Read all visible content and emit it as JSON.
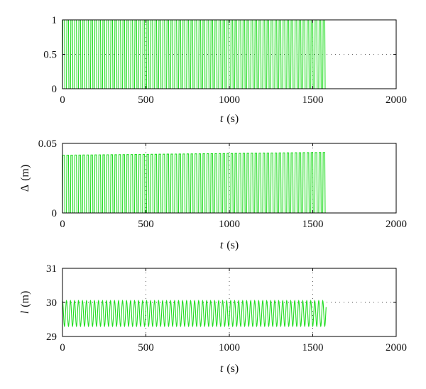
{
  "chart_data": [
    {
      "type": "line",
      "panel": "top",
      "xlabel_var": "t",
      "xlabel_unit": "(s)",
      "ylabel_var": "",
      "ylabel_unit": "",
      "xlim": [
        0,
        2000
      ],
      "ylim": [
        0,
        1
      ],
      "xticks": [
        0,
        500,
        1000,
        1500,
        2000
      ],
      "yticks": [
        0,
        0.5,
        1
      ],
      "xtick_labels": [
        "0",
        "500",
        "1000",
        "1500",
        "2000"
      ],
      "ytick_labels": [
        "0",
        "0.5",
        "1"
      ],
      "grid": true,
      "series": [
        {
          "color": "#22dd22",
          "kind": "periodic-pulse",
          "x_start": 0,
          "x_end": 1580,
          "period": 24,
          "y_min": 0,
          "y_max": 1
        }
      ]
    },
    {
      "type": "line",
      "panel": "middle",
      "xlabel_var": "t",
      "xlabel_unit": "(s)",
      "ylabel_var": "Δ",
      "ylabel_unit": "(m)",
      "xlim": [
        0,
        2000
      ],
      "ylim": [
        0,
        0.05
      ],
      "xticks": [
        0,
        500,
        1000,
        1500,
        2000
      ],
      "yticks": [
        0,
        0.05
      ],
      "xtick_labels": [
        "0",
        "500",
        "1000",
        "1500",
        "2000"
      ],
      "ytick_labels": [
        "0",
        "0.05"
      ],
      "grid": true,
      "series": [
        {
          "color": "#22dd22",
          "kind": "periodic-pulse",
          "x_start": 0,
          "x_end": 1580,
          "period": 24,
          "y_min": 0,
          "y_max_start": 0.0415,
          "y_max_end": 0.0435
        }
      ]
    },
    {
      "type": "line",
      "panel": "bottom",
      "xlabel_var": "t",
      "xlabel_unit": "(s)",
      "ylabel_var": "l",
      "ylabel_unit": "(m)",
      "xlim": [
        0,
        2000
      ],
      "ylim": [
        29,
        31
      ],
      "xticks": [
        0,
        500,
        1000,
        1500,
        2000
      ],
      "yticks": [
        29,
        30,
        31
      ],
      "xtick_labels": [
        "0",
        "500",
        "1000",
        "1500",
        "2000"
      ],
      "ytick_labels": [
        "29",
        "30",
        "31"
      ],
      "grid": true,
      "series": [
        {
          "color": "#22dd22",
          "kind": "periodic-oscillation",
          "x_start": 0,
          "x_end": 1580,
          "period": 24,
          "y_min": 29.3,
          "y_max": 30.05
        }
      ]
    }
  ]
}
